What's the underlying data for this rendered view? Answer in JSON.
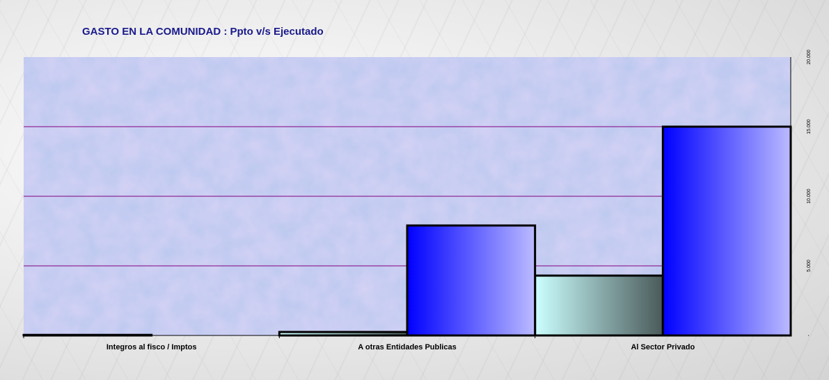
{
  "chart_data": {
    "type": "bar",
    "title": "GASTO EN LA COMUNIDAD : Ppto v/s Ejecutado",
    "categories": [
      "Integros al fisco / Imptos",
      "A otras Entidades Publicas",
      "Al Sector Privado"
    ],
    "series": [
      {
        "values": [
          40,
          250,
          4300
        ]
      },
      {
        "values": [
          0,
          7900,
          15000
        ]
      }
    ],
    "ylim": [
      0,
      20000
    ],
    "yticks": [
      0,
      5000,
      10000,
      15000,
      20000
    ],
    "ytick_labels": [
      "-",
      "5.000",
      "10.000",
      "15.000",
      "20.000"
    ],
    "y_axis_side": "right",
    "grid": true,
    "colors": {
      "grid": "#800080",
      "series1_light": "#ccffff",
      "series1_dark": "#4a5a5a",
      "series2_dark": "#0000ff",
      "series2_light": "#bbbbff",
      "plot_bg": "#b9c8ef",
      "title": "#1a1a8c"
    }
  }
}
